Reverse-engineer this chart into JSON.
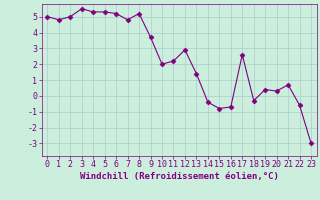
{
  "x": [
    0,
    1,
    2,
    3,
    4,
    5,
    6,
    7,
    8,
    9,
    10,
    11,
    12,
    13,
    14,
    15,
    16,
    17,
    18,
    19,
    20,
    21,
    22,
    23
  ],
  "y": [
    5.0,
    4.8,
    5.0,
    5.5,
    5.3,
    5.3,
    5.2,
    4.8,
    5.2,
    3.7,
    2.0,
    2.2,
    2.9,
    1.4,
    -0.4,
    -0.8,
    -0.7,
    2.6,
    -0.3,
    0.4,
    0.3,
    0.7,
    -0.6,
    -3.0
  ],
  "line_color": "#800080",
  "marker": "D",
  "marker_size": 2.5,
  "bg_color": "#cceedd",
  "grid_color": "#aacccc",
  "xlabel": "Windchill (Refroidissement éolien,°C)",
  "xlim": [
    -0.5,
    23.5
  ],
  "ylim": [
    -3.8,
    5.8
  ],
  "yticks": [
    -3,
    -2,
    -1,
    0,
    1,
    2,
    3,
    4,
    5
  ],
  "xticks": [
    0,
    1,
    2,
    3,
    4,
    5,
    6,
    7,
    8,
    9,
    10,
    11,
    12,
    13,
    14,
    15,
    16,
    17,
    18,
    19,
    20,
    21,
    22,
    23
  ],
  "tick_color": "#800080",
  "label_color": "#800080",
  "font_size": 6,
  "xlabel_size": 6.5
}
